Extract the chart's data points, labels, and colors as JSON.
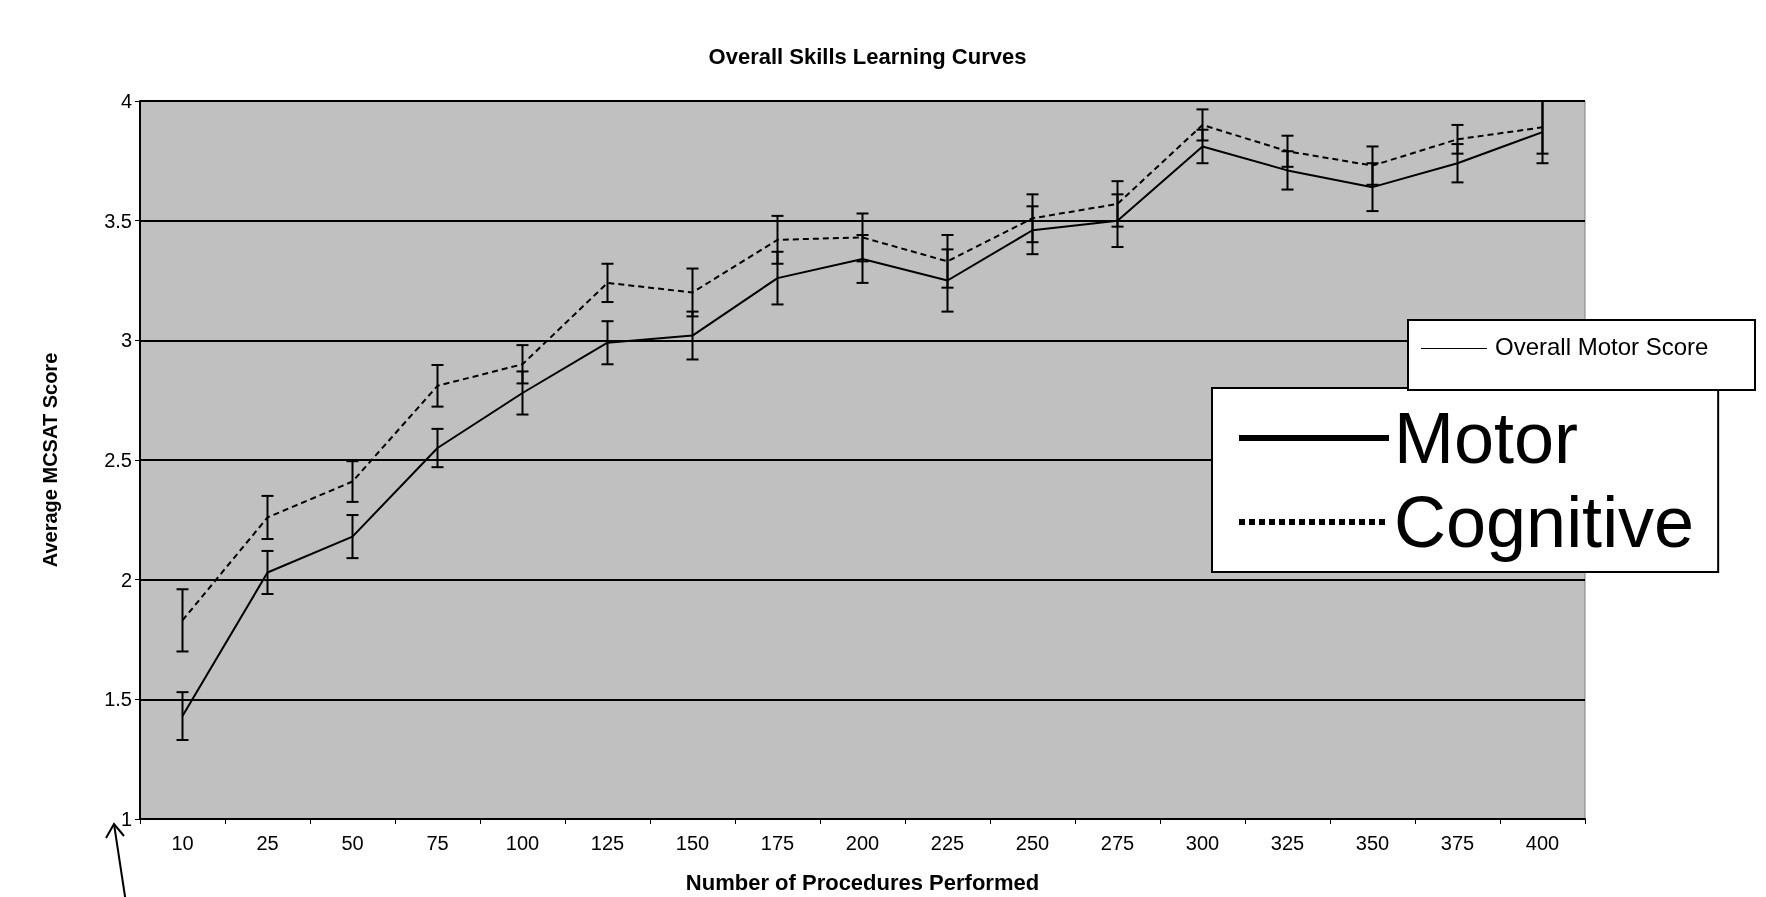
{
  "chart_data": {
    "type": "line",
    "title": "Overall Skills Learning Curves",
    "xlabel": "Number of Procedures Performed",
    "ylabel": "Average MCSAT Score",
    "categories": [
      "10",
      "25",
      "50",
      "75",
      "100",
      "125",
      "150",
      "175",
      "200",
      "225",
      "250",
      "275",
      "300",
      "325",
      "350",
      "375",
      "400"
    ],
    "series": [
      {
        "name": "Motor",
        "color": "#000000",
        "line_style": "solid",
        "values": [
          1.43,
          2.03,
          2.18,
          2.55,
          2.78,
          2.99,
          3.02,
          3.26,
          3.34,
          3.25,
          3.46,
          3.5,
          3.81,
          3.71,
          3.64,
          3.74,
          3.87
        ],
        "errors": [
          0.1,
          0.09,
          0.09,
          0.08,
          0.09,
          0.09,
          0.1,
          0.11,
          0.1,
          0.13,
          0.1,
          0.11,
          0.07,
          0.08,
          0.1,
          0.08,
          0.13
        ]
      },
      {
        "name": "Cognitive",
        "color": "#000000",
        "line_style": "dashed",
        "values": [
          1.83,
          2.26,
          2.41,
          2.81,
          2.9,
          3.24,
          3.2,
          3.42,
          3.43,
          3.33,
          3.51,
          3.57,
          3.9,
          3.79,
          3.73,
          3.84,
          3.89
        ],
        "errors": [
          0.13,
          0.09,
          0.085,
          0.087,
          0.08,
          0.08,
          0.1,
          0.1,
          0.1,
          0.11,
          0.1,
          0.095,
          0.065,
          0.065,
          0.08,
          0.06,
          0.11
        ]
      }
    ],
    "ylim": [
      1,
      4
    ],
    "yticks": [
      1,
      1.5,
      2,
      2.5,
      3,
      3.5,
      4
    ],
    "grid": "y",
    "legend": "right",
    "marker": "none",
    "annotations": [
      "Overall Motor Score"
    ]
  }
}
